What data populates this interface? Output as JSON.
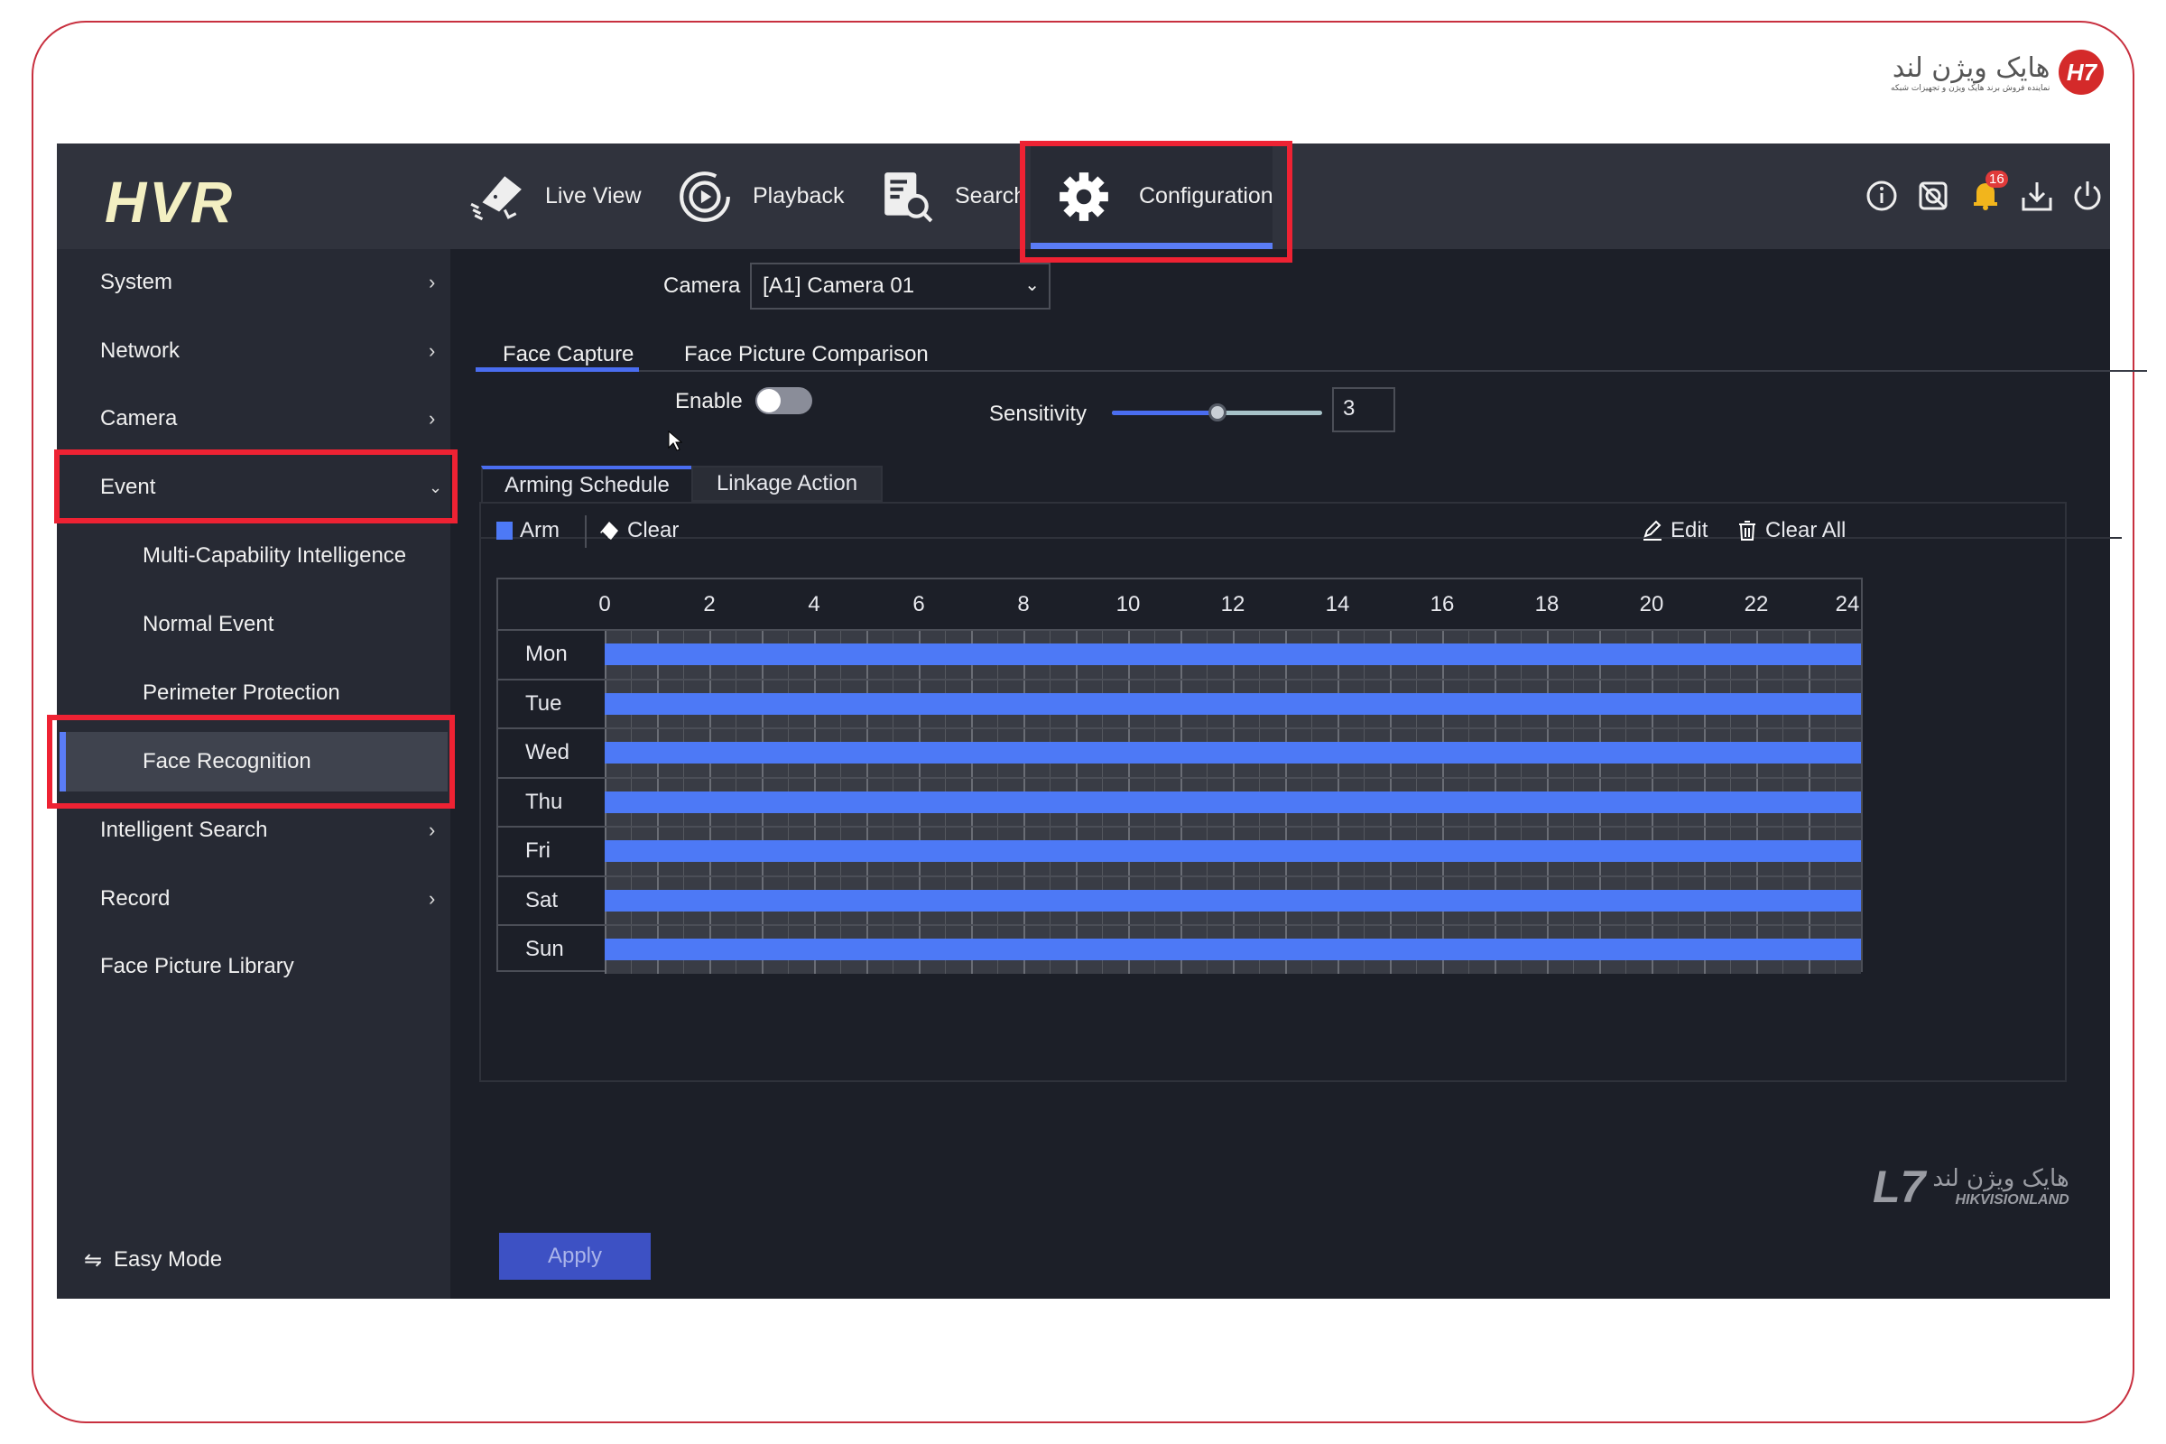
{
  "brand": {
    "logo": "HVR",
    "corner_logo_text": "هایک ویژن لند",
    "corner_logo_tagline": "نماینده فروش برند هایک ویژن و تجهیزات شبکه",
    "watermark": "HIKVISIONLAND",
    "watermark_fa": "هایک ویژن لند",
    "accent": "#ee2233"
  },
  "nav": [
    {
      "label": "Live View",
      "icon": "camera-icon"
    },
    {
      "label": "Playback",
      "icon": "playback-icon"
    },
    {
      "label": "Search",
      "icon": "search-icon"
    },
    {
      "label": "Configuration",
      "icon": "gear-icon",
      "active": true
    }
  ],
  "header_icons": {
    "notifications": "16"
  },
  "sidebar": {
    "items": [
      {
        "label": "System"
      },
      {
        "label": "Network"
      },
      {
        "label": "Camera"
      },
      {
        "label": "Event",
        "expanded": true
      },
      {
        "label": "Multi-Capability Intelligence"
      },
      {
        "label": "Normal Event"
      },
      {
        "label": "Perimeter Protection"
      },
      {
        "label": "Face Recognition",
        "selected": true
      },
      {
        "label": "Intelligent Search"
      },
      {
        "label": "Record"
      },
      {
        "label": "Face Picture Library"
      }
    ],
    "easy_mode": "Easy Mode"
  },
  "main": {
    "camera_label": "Camera",
    "camera_value": "[A1] Camera 01",
    "tabs": [
      "Face Capture",
      "Face Picture Comparison"
    ],
    "enable_label": "Enable",
    "enabled": false,
    "sensitivity_label": "Sensitivity",
    "sensitivity": "3",
    "sensitivity_level": 0.5,
    "subtabs": [
      "Arming Schedule",
      "Linkage Action"
    ],
    "toolbar": {
      "arm": "Arm",
      "clear": "Clear",
      "edit": "Edit",
      "clear_all": "Clear All"
    },
    "hours": [
      "0",
      "2",
      "4",
      "6",
      "8",
      "10",
      "12",
      "14",
      "16",
      "18",
      "20",
      "22",
      "24"
    ],
    "schedule": [
      {
        "day": "Mon",
        "start": 0,
        "end": 24
      },
      {
        "day": "Tue",
        "start": 0,
        "end": 24
      },
      {
        "day": "Wed",
        "start": 0,
        "end": 24
      },
      {
        "day": "Thu",
        "start": 0,
        "end": 24
      },
      {
        "day": "Fri",
        "start": 0,
        "end": 24
      },
      {
        "day": "Sat",
        "start": 0,
        "end": 24
      },
      {
        "day": "Sun",
        "start": 0,
        "end": 24
      }
    ],
    "apply": "Apply",
    "arm_color": "#4d79f6"
  }
}
